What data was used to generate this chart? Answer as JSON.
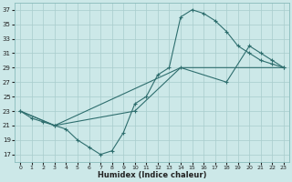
{
  "xlabel": "Humidex (Indice chaleur)",
  "background_color": "#cce8e8",
  "grid_color": "#a8cccc",
  "line_color": "#2e6e6e",
  "xlim": [
    -0.5,
    23.5
  ],
  "ylim": [
    16,
    38
  ],
  "xticks": [
    0,
    1,
    2,
    3,
    4,
    5,
    6,
    7,
    8,
    9,
    10,
    11,
    12,
    13,
    14,
    15,
    16,
    17,
    18,
    19,
    20,
    21,
    22,
    23
  ],
  "yticks": [
    17,
    19,
    21,
    23,
    25,
    27,
    29,
    31,
    33,
    35,
    37
  ],
  "line1_x": [
    0,
    1,
    2,
    3,
    4,
    5,
    6,
    7,
    8,
    9,
    10,
    11,
    12,
    13,
    14,
    15,
    16,
    17,
    18,
    19,
    20,
    21,
    22,
    23
  ],
  "line1_y": [
    23,
    22,
    21.5,
    21,
    20.5,
    19,
    18,
    17,
    17.5,
    20,
    24,
    25,
    28,
    29,
    36,
    37,
    36.5,
    35.5,
    34,
    32,
    31,
    30,
    29.5,
    29
  ],
  "line2_x": [
    0,
    3,
    10,
    14,
    18,
    20,
    21,
    22,
    23
  ],
  "line2_y": [
    23,
    21,
    23,
    29,
    27,
    32,
    31,
    30,
    29
  ],
  "line3_x": [
    0,
    3,
    14,
    23
  ],
  "line3_y": [
    23,
    21,
    29,
    29
  ]
}
